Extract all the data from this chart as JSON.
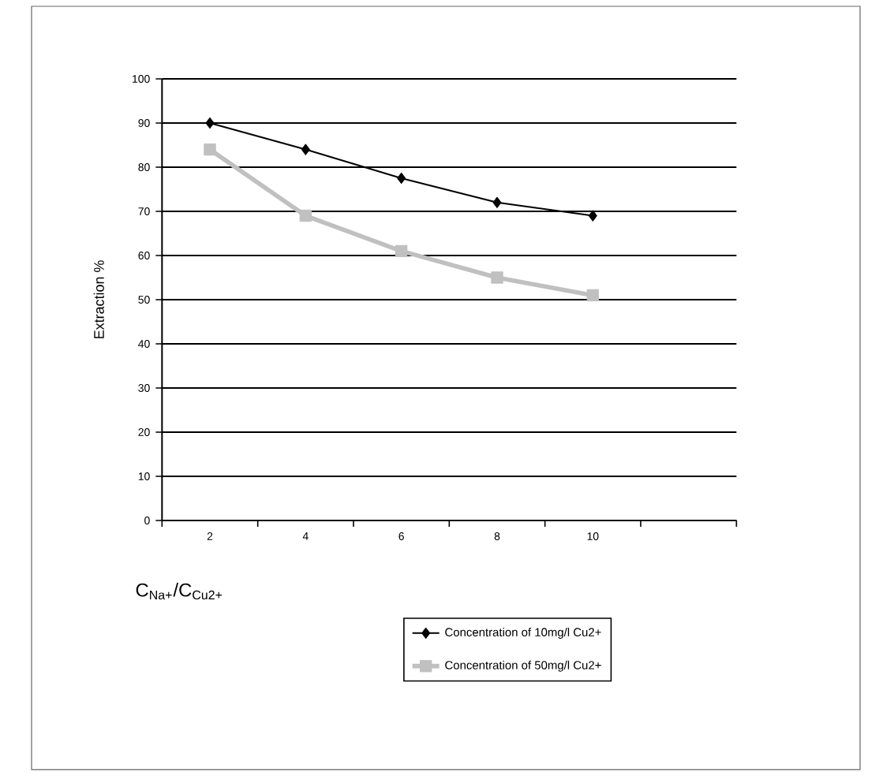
{
  "chart_data": {
    "type": "line",
    "xlabel": "C$_{Na+}$/C$_{Cu2+}$",
    "ylabel": "Extraction %",
    "categories": [
      "2",
      "4",
      "6",
      "8",
      "10",
      null
    ],
    "series": [
      {
        "name": "Concentration of 10mg/l Cu2+",
        "color": "#000000",
        "marker": "diamond",
        "values": [
          90,
          84,
          77.5,
          72,
          69,
          null
        ]
      },
      {
        "name": "Concentration of 50mg/l Cu2+",
        "color": "#c0c0c0",
        "marker": "square",
        "values": [
          84,
          69,
          61,
          55,
          51,
          null
        ]
      }
    ],
    "ylim": [
      0,
      100
    ],
    "yticks": [
      0,
      10,
      20,
      30,
      40,
      50,
      60,
      70,
      80,
      90,
      100
    ],
    "grid": "y",
    "legend": "bottom"
  }
}
